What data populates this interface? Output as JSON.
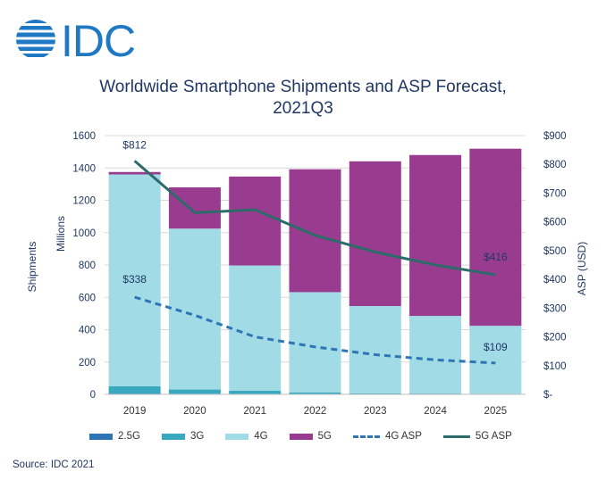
{
  "logo_text": "IDC",
  "title_line1": "Worldwide Smartphone Shipments and ASP Forecast,",
  "title_line2": "2021Q3",
  "source": "Source: IDC 2021",
  "colors": {
    "c25g": "#2e75b6",
    "c3g": "#39a9c0",
    "c4g": "#a1dbe6",
    "c5g": "#993c8f",
    "asp4g": "#2e75b6",
    "asp5g": "#2d6b6b",
    "text": "#1f3864",
    "grid": "#d9d9d9"
  },
  "chart_data": {
    "type": "bar",
    "stacked": true,
    "categories": [
      "2019",
      "2020",
      "2021",
      "2022",
      "2023",
      "2024",
      "2025"
    ],
    "series": [
      {
        "name": "2.5G",
        "values": [
          5,
          3,
          2,
          2,
          1,
          1,
          1
        ]
      },
      {
        "name": "3G",
        "values": [
          45,
          27,
          20,
          10,
          5,
          4,
          3
        ]
      },
      {
        "name": "4G",
        "values": [
          1310,
          995,
          775,
          620,
          540,
          480,
          420
        ]
      },
      {
        "name": "5G",
        "values": [
          15,
          255,
          550,
          760,
          895,
          995,
          1095
        ]
      }
    ],
    "lines": [
      {
        "name": "4G ASP",
        "axis": "right",
        "values": [
          338,
          275,
          200,
          165,
          138,
          120,
          109
        ]
      },
      {
        "name": "5G ASP",
        "axis": "right",
        "values": [
          812,
          632,
          642,
          553,
          495,
          450,
          416
        ]
      }
    ],
    "labels": {
      "asp5g_first": "$812",
      "asp5g_last": "$416",
      "asp4g_first": "$338",
      "asp4g_last": "$109"
    },
    "ylabel_left": "Shipments",
    "ylabel_left_units": "Millions",
    "ylabel_right": "ASP (USD)",
    "ylim_left": [
      0,
      1600
    ],
    "yticks_left": [
      "0",
      "200",
      "400",
      "600",
      "800",
      "1000",
      "1200",
      "1400",
      "1600"
    ],
    "ylim_right": [
      0,
      900
    ],
    "yticks_right": [
      "$-",
      "$100",
      "$200",
      "$300",
      "$400",
      "$500",
      "$600",
      "$700",
      "$800",
      "$900"
    ],
    "legend": [
      {
        "label": "2.5G",
        "kind": "box",
        "color": "#2e75b6"
      },
      {
        "label": "3G",
        "kind": "box",
        "color": "#39a9c0"
      },
      {
        "label": "4G",
        "kind": "box",
        "color": "#a1dbe6"
      },
      {
        "label": "5G",
        "kind": "box",
        "color": "#993c8f"
      },
      {
        "label": "4G ASP",
        "kind": "dash",
        "color": "#2e75b6"
      },
      {
        "label": "5G ASP",
        "kind": "solid",
        "color": "#2d6b6b"
      }
    ]
  }
}
